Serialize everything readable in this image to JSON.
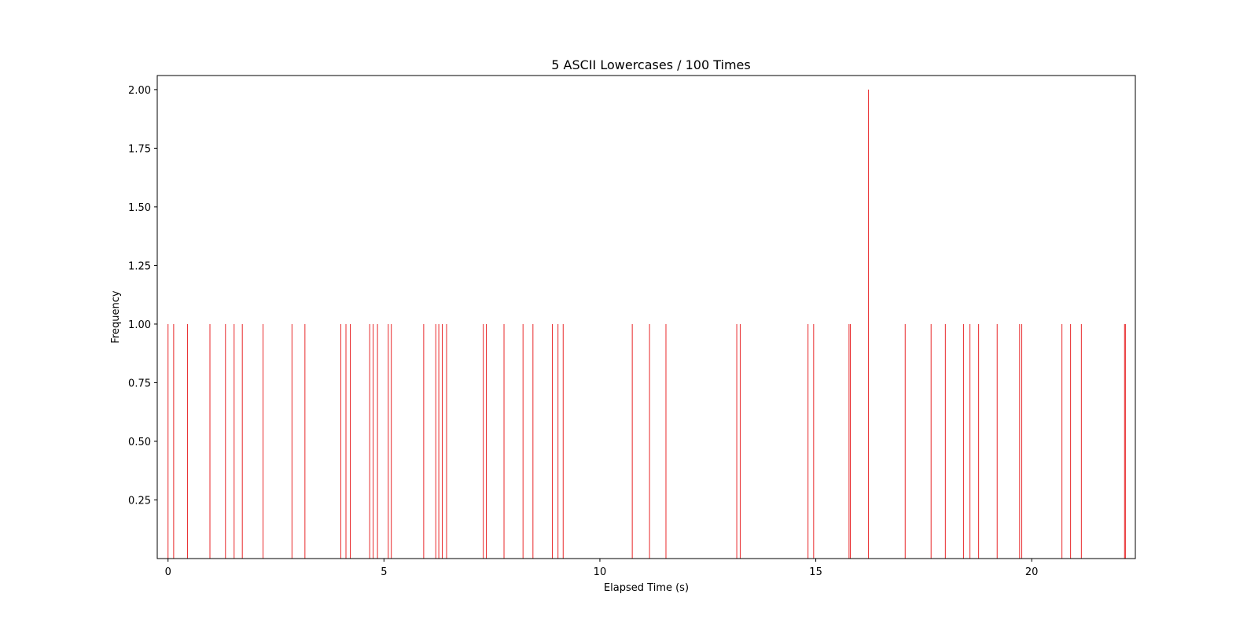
{
  "chart_data": {
    "type": "bar",
    "title": "5 ASCII Lowercases / 100 Times",
    "xlabel": "Elapsed Time (s)",
    "ylabel": "Frequency",
    "xlim": [
      -0.25,
      22.4
    ],
    "ylim": [
      0,
      2.06
    ],
    "xticks": [
      0,
      5,
      10,
      15,
      20
    ],
    "yticks": [
      0.25,
      0.5,
      0.75,
      1.0,
      1.25,
      1.5,
      1.75,
      2.0
    ],
    "ytick_labels": [
      "0.25",
      "0.50",
      "0.75",
      "1.00",
      "1.25",
      "1.50",
      "1.75",
      "2.00"
    ],
    "grid": false,
    "bar_color": "#e8292b",
    "series": [
      {
        "x": [
          0.0,
          0.13,
          0.45,
          0.97,
          1.33,
          1.53,
          1.72,
          2.2,
          2.87,
          3.17,
          4.0,
          4.12,
          4.22,
          4.67,
          4.75,
          4.85,
          5.1,
          5.17,
          5.92,
          6.2,
          6.27,
          6.35,
          6.45,
          7.3,
          7.37,
          7.78,
          8.22,
          8.45,
          8.9,
          9.03,
          9.15,
          10.75,
          11.15,
          11.53,
          13.17,
          13.25,
          14.82,
          14.95,
          15.77,
          15.8,
          16.22,
          17.07,
          17.67,
          18.0,
          18.42,
          18.57,
          18.77,
          19.2,
          19.72,
          19.77,
          20.7,
          20.9,
          21.15,
          22.15,
          22.17
        ],
        "values": [
          1,
          1,
          1,
          1,
          1,
          1,
          1,
          1,
          1,
          1,
          1,
          1,
          1,
          1,
          1,
          1,
          1,
          1,
          1,
          1,
          1,
          1,
          1,
          1,
          1,
          1,
          1,
          1,
          1,
          1,
          1,
          1,
          1,
          1,
          1,
          1,
          1,
          1,
          1,
          1,
          2,
          1,
          1,
          1,
          1,
          1,
          1,
          1,
          1,
          1,
          1,
          1,
          1,
          1,
          1
        ]
      }
    ]
  }
}
